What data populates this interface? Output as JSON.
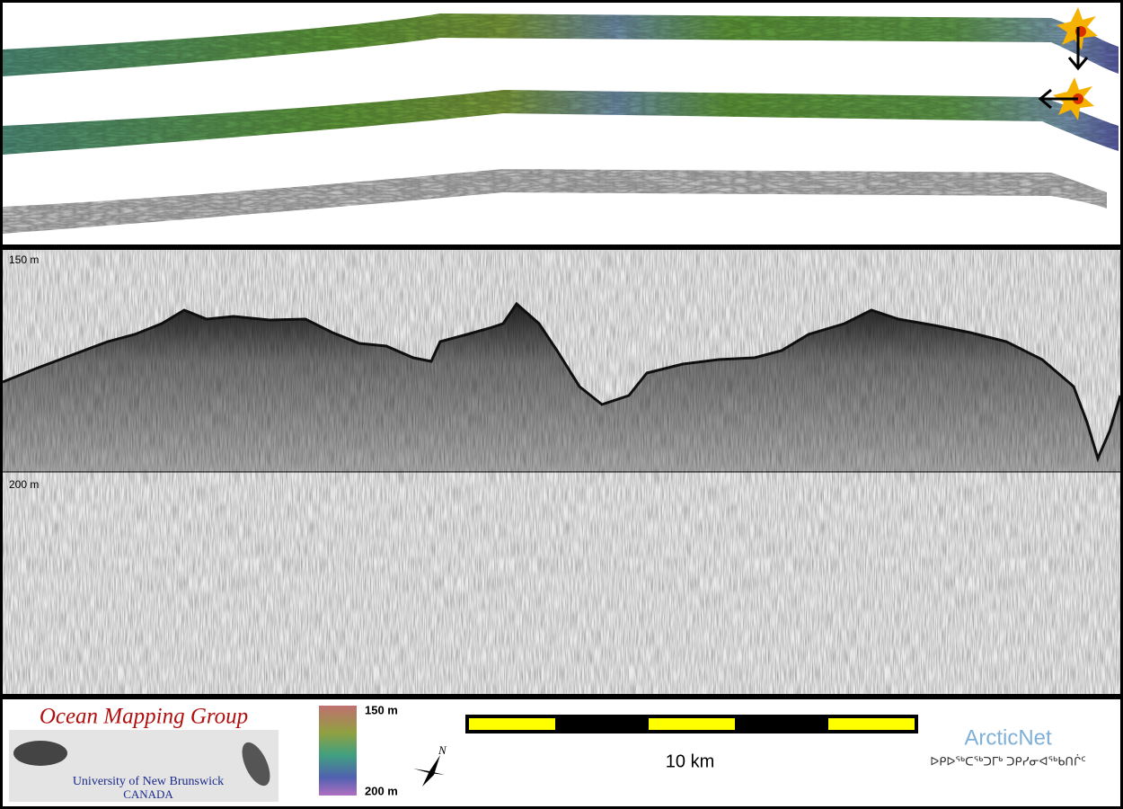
{
  "echogram": {
    "depth_labels": [
      "150 m",
      "200 m"
    ]
  },
  "legend": {
    "logo": {
      "title": "Ocean Mapping Group",
      "institution": "University of New Brunswick",
      "country": "CANADA"
    },
    "colorbar": {
      "top_label": "150 m",
      "bottom_label": "200 m"
    },
    "north": "N",
    "scale_bar": "10 km",
    "partner": {
      "name": "ArcticNet",
      "name_inuktitut": "ᐅᑭᐅᖅᑕᖅᑐᒥᒃ ᑐᑭᓯᓂᐊᖅᑲᑎᒌᑦ"
    }
  }
}
